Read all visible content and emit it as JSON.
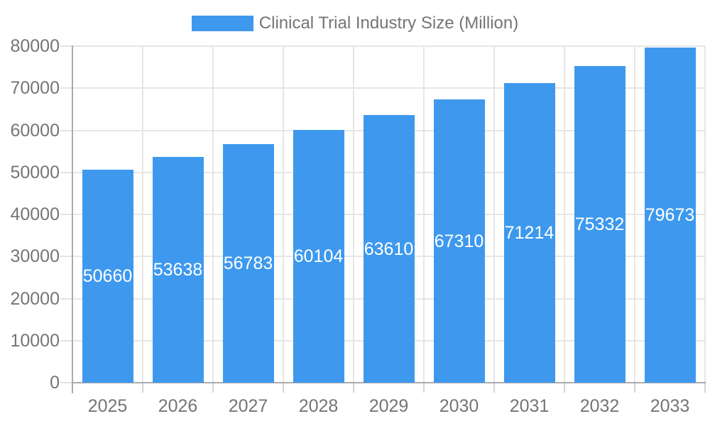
{
  "chart_data": {
    "type": "bar",
    "title": "Clinical Trial Industry Size (Million)",
    "categories": [
      "2025",
      "2026",
      "2027",
      "2028",
      "2029",
      "2030",
      "2031",
      "2032",
      "2033"
    ],
    "values": [
      50660,
      53638,
      56783,
      60104,
      63610,
      67310,
      71214,
      75332,
      79673
    ],
    "bar_labels": [
      "50660",
      "53638",
      "56783",
      "60104",
      "63610",
      "67310",
      "71214",
      "75332",
      "79673"
    ],
    "xlabel": "",
    "ylabel": "",
    "ylim": [
      0,
      80000
    ],
    "ytick_step": 10000,
    "yticks": [
      0,
      10000,
      20000,
      30000,
      40000,
      50000,
      60000,
      70000,
      80000
    ],
    "ytick_labels": [
      "0",
      "10000",
      "20000",
      "30000",
      "40000",
      "50000",
      "60000",
      "70000",
      "80000"
    ],
    "grid": true,
    "legend_position": "top",
    "colors": {
      "bar": "#3e99ee",
      "bar_label_text": "#ffffff",
      "axis_text": "#757575",
      "gridline": "#e6e6e6",
      "axis_line": "#ababab",
      "x_tick": "#d4d4d4",
      "y_tick": "#e3e3e3",
      "background": "#ffffff"
    }
  }
}
